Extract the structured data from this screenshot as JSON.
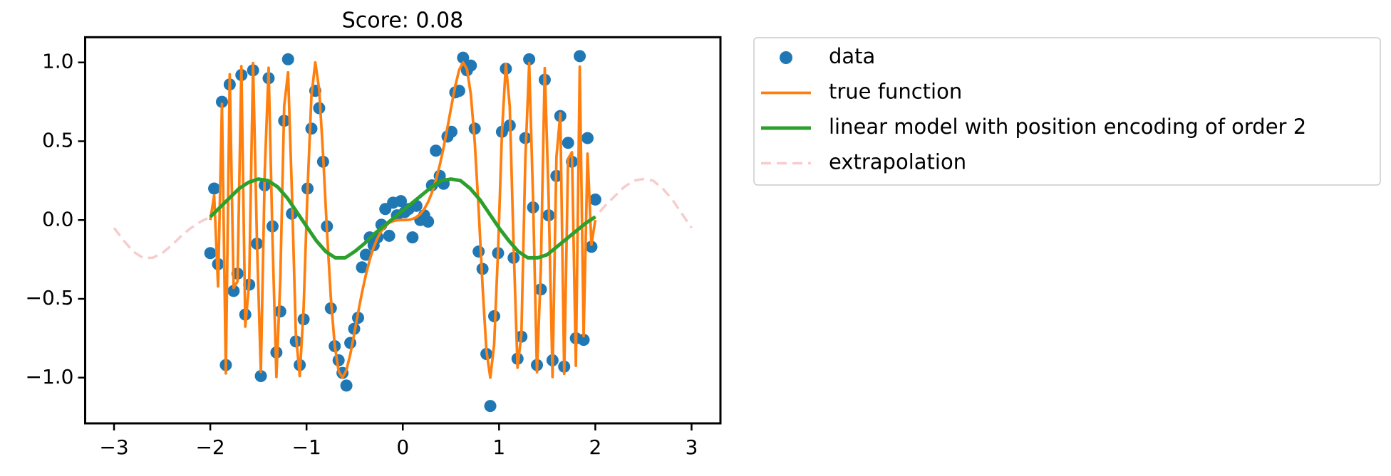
{
  "chart_data": {
    "type": "line",
    "title": "Score: 0.08",
    "xlim": [
      -3.3,
      3.3
    ],
    "ylim": [
      -1.29,
      1.16
    ],
    "xticks": [
      {
        "value": -3,
        "label": "−3"
      },
      {
        "value": -2,
        "label": "−2"
      },
      {
        "value": -1,
        "label": "−1"
      },
      0,
      1,
      2,
      3
    ],
    "yticks": [
      {
        "value": -1.0,
        "label": "−1.0"
      },
      {
        "value": -0.5,
        "label": "−0.5"
      },
      {
        "value": 0.0,
        "label": "0.0"
      },
      {
        "value": 0.5,
        "label": "0.5"
      },
      {
        "value": 1.0,
        "label": "1.0"
      }
    ],
    "grid": false,
    "legend": "outside upper left",
    "series": [
      {
        "name": "data",
        "color": "#1f77b4",
        "marker": "o",
        "linestyle": "none",
        "x": [
          -2.0,
          -1.9596,
          -1.9192,
          -1.8788,
          -1.8384,
          -1.798,
          -1.7576,
          -1.7172,
          -1.6768,
          -1.6364,
          -1.596,
          -1.5556,
          -1.5152,
          -1.4747,
          -1.4343,
          -1.3939,
          -1.3535,
          -1.3131,
          -1.2727,
          -1.2323,
          -1.1919,
          -1.1515,
          -1.1111,
          -1.0707,
          -1.0303,
          -0.9899,
          -0.9495,
          -0.9091,
          -0.8687,
          -0.8283,
          -0.7879,
          -0.7475,
          -0.7071,
          -0.6667,
          -0.6263,
          -0.5859,
          -0.5455,
          -0.5051,
          -0.4646,
          -0.4242,
          -0.3838,
          -0.3434,
          -0.303,
          -0.2626,
          -0.2222,
          -0.1818,
          -0.1414,
          -0.101,
          -0.0606,
          -0.0202,
          0.0202,
          0.0606,
          0.101,
          0.1414,
          0.1818,
          0.2222,
          0.2626,
          0.303,
          0.3434,
          0.3838,
          0.4242,
          0.4646,
          0.5051,
          0.5455,
          0.5859,
          0.6263,
          0.6667,
          0.7071,
          0.7475,
          0.7879,
          0.8283,
          0.8687,
          0.9091,
          0.9495,
          0.9899,
          1.0303,
          1.0707,
          1.1111,
          1.1515,
          1.1919,
          1.2323,
          1.2727,
          1.3131,
          1.3535,
          1.3939,
          1.4343,
          1.4747,
          1.5152,
          1.5556,
          1.596,
          1.6364,
          1.6768,
          1.7172,
          1.7576,
          1.798,
          1.8384,
          1.8788,
          1.9192,
          1.9596,
          2.0
        ],
        "values": [
          -0.21,
          0.2,
          -0.28,
          0.75,
          -0.92,
          0.86,
          -0.45,
          -0.34,
          0.92,
          -0.6,
          -0.41,
          0.95,
          -0.15,
          -0.99,
          0.22,
          0.9,
          -0.04,
          -0.84,
          -0.58,
          0.63,
          1.02,
          0.04,
          -0.77,
          -0.92,
          -0.63,
          0.2,
          0.58,
          0.82,
          0.71,
          0.37,
          -0.04,
          -0.56,
          -0.8,
          -0.89,
          -0.97,
          -1.05,
          -0.78,
          -0.69,
          -0.62,
          -0.3,
          -0.22,
          -0.11,
          -0.16,
          -0.11,
          -0.03,
          0.07,
          -0.1,
          0.11,
          0.03,
          0.12,
          0.05,
          0.07,
          -0.11,
          0.09,
          0.0,
          0.03,
          -0.01,
          0.22,
          0.44,
          0.28,
          0.23,
          0.53,
          0.56,
          0.81,
          0.82,
          1.03,
          0.95,
          0.98,
          0.58,
          -0.2,
          -0.31,
          -0.85,
          -1.18,
          -0.61,
          -0.21,
          0.56,
          0.96,
          0.6,
          -0.24,
          -0.88,
          -0.74,
          0.52,
          1.02,
          0.08,
          -0.92,
          -0.44,
          0.89,
          0.03,
          -0.89,
          0.28,
          0.66,
          -0.93,
          0.49,
          0.37,
          -0.75,
          1.04,
          -0.76,
          0.52,
          -0.17,
          0.13
        ]
      },
      {
        "name": "true function",
        "color": "#ff7f0e",
        "linestyle": "solid",
        "x": [
          -2.0,
          -1.9596,
          -1.9192,
          -1.8788,
          -1.8384,
          -1.798,
          -1.7576,
          -1.7172,
          -1.6768,
          -1.6364,
          -1.596,
          -1.5556,
          -1.5152,
          -1.4747,
          -1.4343,
          -1.3939,
          -1.3535,
          -1.3131,
          -1.2727,
          -1.2323,
          -1.1919,
          -1.1515,
          -1.1111,
          -1.0707,
          -1.0303,
          -0.9899,
          -0.9495,
          -0.9091,
          -0.8687,
          -0.8283,
          -0.7879,
          -0.7475,
          -0.7071,
          -0.6667,
          -0.6263,
          -0.5859,
          -0.5455,
          -0.5051,
          -0.4646,
          -0.4242,
          -0.3838,
          -0.3434,
          -0.303,
          -0.2626,
          -0.2222,
          -0.1818,
          -0.1414,
          -0.101,
          -0.0606,
          -0.0202,
          0.0202,
          0.0606,
          0.101,
          0.1414,
          0.1818,
          0.2222,
          0.2626,
          0.303,
          0.3434,
          0.3838,
          0.4242,
          0.4646,
          0.5051,
          0.5455,
          0.5859,
          0.6263,
          0.6667,
          0.7071,
          0.7475,
          0.7879,
          0.8283,
          0.8687,
          0.9091,
          0.9495,
          0.9899,
          1.0303,
          1.0707,
          1.1111,
          1.1515,
          1.1919,
          1.2323,
          1.2727,
          1.3131,
          1.3535,
          1.3939,
          1.4343,
          1.4747,
          1.5152,
          1.5556,
          1.596,
          1.6364,
          1.6768,
          1.7172,
          1.7576,
          1.798,
          1.8384,
          1.8788,
          1.9192,
          1.9596,
          2.0
        ],
        "values": [
          0,
          0.156,
          -0.421,
          0.737,
          -0.973,
          0.925,
          -0.43,
          -0.389,
          0.976,
          -0.676,
          -0.399,
          0.996,
          -0.134,
          -0.964,
          0.304,
          0.966,
          -0.127,
          -0.996,
          -0.378,
          0.723,
          0.937,
          0.168,
          -0.722,
          -0.99,
          -0.555,
          0.187,
          0.786,
          1.0,
          0.829,
          0.416,
          -0.068,
          -0.494,
          -0.796,
          -0.958,
          -1.0,
          -0.953,
          -0.852,
          -0.724,
          -0.589,
          -0.461,
          -0.348,
          -0.252,
          -0.174,
          -0.114,
          -0.069,
          -0.038,
          -0.018,
          -0.007,
          -0.001,
          0,
          0,
          0.001,
          0.007,
          0.018,
          0.038,
          0.069,
          0.114,
          0.174,
          0.252,
          0.348,
          0.461,
          0.589,
          0.724,
          0.852,
          0.953,
          1.0,
          0.958,
          0.796,
          0.494,
          0.068,
          -0.416,
          -0.829,
          -1.0,
          -0.786,
          -0.187,
          0.555,
          0.99,
          0.722,
          -0.168,
          -0.937,
          -0.723,
          0.378,
          0.996,
          0.127,
          -0.966,
          -0.304,
          0.964,
          0.134,
          -0.996,
          0.399,
          0.676,
          -0.976,
          0.389,
          0.43,
          -0.925,
          0.973,
          -0.737,
          0.421,
          -0.156,
          0
        ]
      },
      {
        "name": "linear model with position encoding of order 2",
        "color": "#2ca02c",
        "linestyle": "solid",
        "x": [
          -2.0,
          -1.9,
          -1.8,
          -1.7,
          -1.6,
          -1.5,
          -1.4,
          -1.3,
          -1.2,
          -1.1,
          -1.0,
          -0.9,
          -0.8,
          -0.7,
          -0.6,
          -0.5,
          -0.4,
          -0.3,
          -0.2,
          -0.1,
          0.0,
          0.1,
          0.2,
          0.3,
          0.4,
          0.5,
          0.6,
          0.7,
          0.8,
          0.9,
          1.0,
          1.1,
          1.2,
          1.3,
          1.4,
          1.5,
          1.6,
          1.7,
          1.8,
          1.9,
          2.0
        ],
        "values": [
          0.02,
          0.08,
          0.14,
          0.2,
          0.24,
          0.26,
          0.25,
          0.21,
          0.14,
          0.05,
          -0.04,
          -0.13,
          -0.2,
          -0.24,
          -0.24,
          -0.2,
          -0.15,
          -0.09,
          -0.04,
          0.01,
          0.06,
          0.11,
          0.16,
          0.21,
          0.25,
          0.26,
          0.25,
          0.2,
          0.13,
          0.04,
          -0.05,
          -0.13,
          -0.2,
          -0.24,
          -0.24,
          -0.22,
          -0.17,
          -0.12,
          -0.07,
          -0.02,
          0.02
        ]
      },
      {
        "name": "extrapolation",
        "color": "#f7cccc",
        "linestyle": "dashed",
        "x": [
          -3.0,
          -2.9,
          -2.8,
          -2.7,
          -2.6,
          -2.5,
          -2.4,
          -2.3,
          -2.2,
          -2.1,
          -2.0,
          -1.9,
          -1.8,
          -1.7,
          -1.6,
          -1.5,
          -1.4,
          -1.3,
          -1.2,
          -1.1,
          -1.0,
          -0.9,
          -0.8,
          -0.7,
          -0.6,
          -0.5,
          -0.4,
          -0.3,
          -0.2,
          -0.1,
          0.0,
          0.1,
          0.2,
          0.3,
          0.4,
          0.5,
          0.6,
          0.7,
          0.8,
          0.9,
          1.0,
          1.1,
          1.2,
          1.3,
          1.4,
          1.5,
          1.6,
          1.7,
          1.8,
          1.9,
          2.0,
          2.1,
          2.2,
          2.3,
          2.4,
          2.5,
          2.6,
          2.7,
          2.8,
          2.9,
          3.0
        ],
        "values": [
          -0.05,
          -0.13,
          -0.2,
          -0.24,
          -0.24,
          -0.21,
          -0.16,
          -0.1,
          -0.05,
          -0.01,
          0.02,
          0.08,
          0.14,
          0.2,
          0.24,
          0.26,
          0.25,
          0.21,
          0.14,
          0.05,
          -0.04,
          -0.13,
          -0.2,
          -0.24,
          -0.24,
          -0.2,
          -0.15,
          -0.09,
          -0.04,
          0.01,
          0.06,
          0.11,
          0.16,
          0.21,
          0.25,
          0.26,
          0.25,
          0.2,
          0.13,
          0.04,
          -0.05,
          -0.13,
          -0.2,
          -0.24,
          -0.24,
          -0.22,
          -0.17,
          -0.12,
          -0.07,
          -0.02,
          0.02,
          0.09,
          0.15,
          0.21,
          0.25,
          0.26,
          0.25,
          0.2,
          0.13,
          0.04,
          -0.05
        ]
      }
    ]
  }
}
